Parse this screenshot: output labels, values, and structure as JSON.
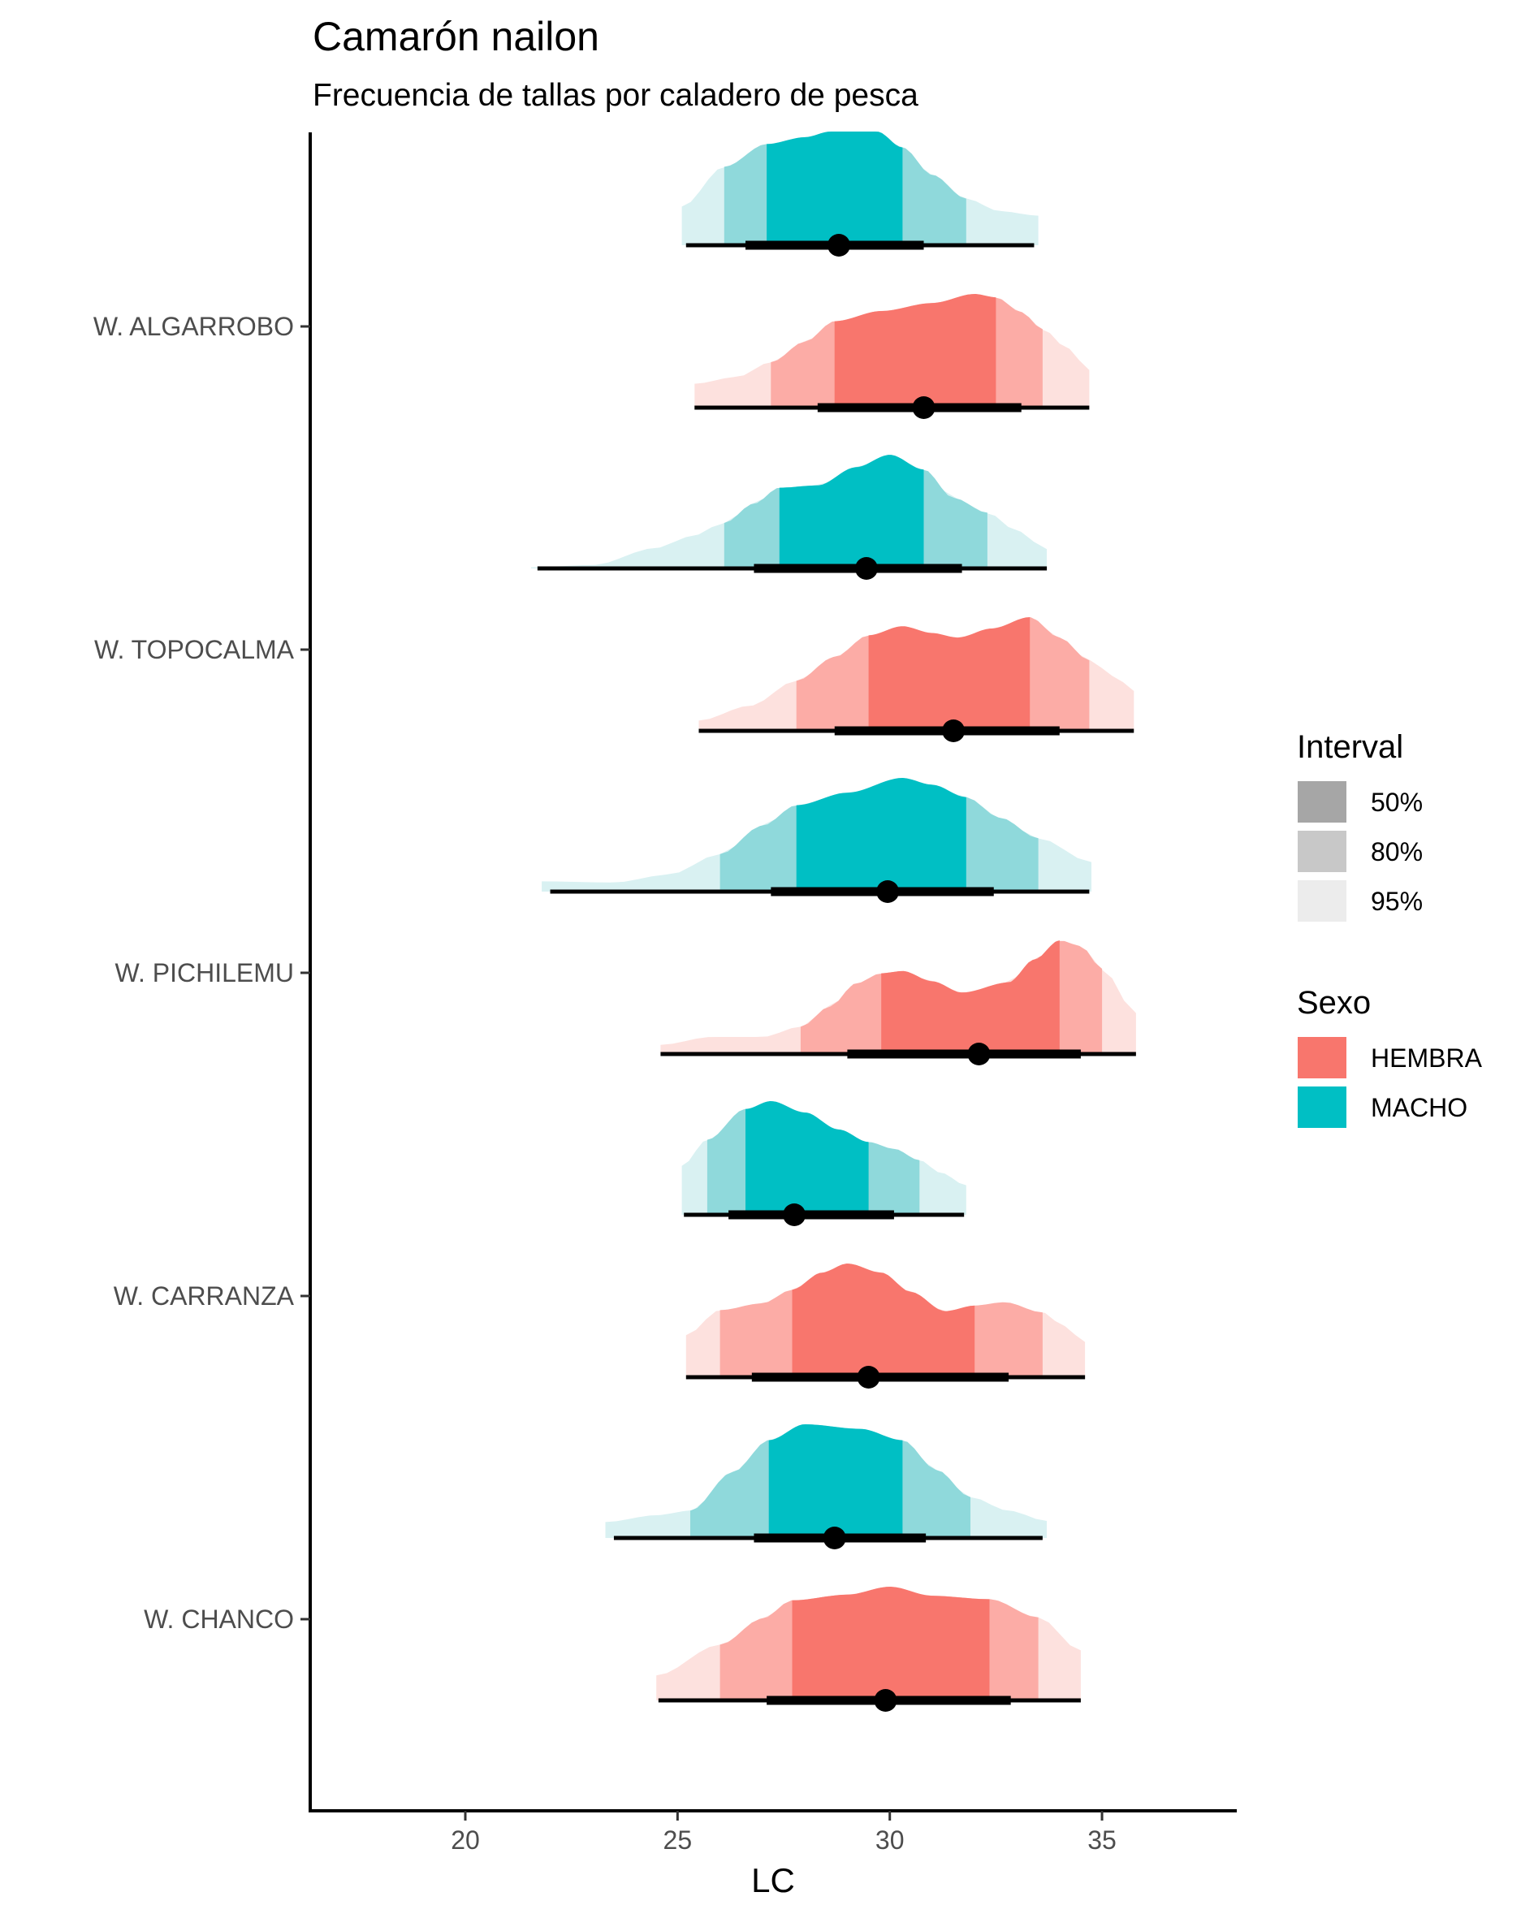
{
  "chart_data": {
    "type": "area",
    "subtype": "halfeye-density-with-intervals",
    "title": "Camarón nailon",
    "subtitle": "Frecuencia de tallas por caladero de pesca",
    "xlabel": "LC",
    "ylabel": "",
    "xlim": [
      16.35,
      38.2
    ],
    "x_ticks": [
      20,
      25,
      30,
      35
    ],
    "categories": [
      "W. ALGARROBO",
      "W. TOPOCALMA",
      "W. PICHILEMU",
      "W. CARRANZA",
      "W. CHANCO"
    ],
    "grid": false,
    "legend": {
      "placement": "right",
      "interval": {
        "title": "Interval",
        "items": [
          {
            "label": "50%",
            "color": "#a6a6a6"
          },
          {
            "label": "80%",
            "color": "#c8c8c8"
          },
          {
            "label": "95%",
            "color": "#ececec"
          }
        ]
      },
      "sexo": {
        "title": "Sexo",
        "items": [
          {
            "label": "HEMBRA",
            "color": "#f8766d"
          },
          {
            "label": "MACHO",
            "color": "#00bfc4"
          }
        ]
      }
    },
    "colors": {
      "HEMBRA": {
        "i50": "#f8766d",
        "i80": "#fcaca6",
        "i95": "#fde1de"
      },
      "MACHO": {
        "i50": "#00bfc4",
        "i80": "#8fd9db",
        "i95": "#d9f1f2"
      }
    },
    "series": [
      {
        "category": "W. ALGARROBO",
        "sexo": "MACHO",
        "median": 28.8,
        "range": [
          25.1,
          33.5
        ],
        "i95": [
          25.2,
          33.4
        ],
        "i80": [
          26.1,
          31.8
        ],
        "i50": [
          27.1,
          30.3
        ],
        "thick": [
          26.6,
          30.8
        ],
        "density": [
          [
            25.1,
            0.34
          ],
          [
            26.1,
            0.69
          ],
          [
            27.1,
            0.89
          ],
          [
            28.0,
            0.95
          ],
          [
            28.6,
            1.0
          ],
          [
            29.7,
            1.0
          ],
          [
            30.3,
            0.86
          ],
          [
            31.0,
            0.62
          ],
          [
            31.8,
            0.41
          ],
          [
            32.6,
            0.3
          ],
          [
            33.5,
            0.26
          ]
        ]
      },
      {
        "category": "W. ALGARROBO",
        "sexo": "HEMBRA",
        "median": 30.8,
        "range": [
          25.4,
          34.7
        ],
        "i95": [
          25.4,
          34.7
        ],
        "i80": [
          27.2,
          33.6
        ],
        "i50": [
          28.7,
          32.5
        ],
        "thick": [
          28.3,
          33.1
        ],
        "density": [
          [
            25.4,
            0.21
          ],
          [
            26.4,
            0.27
          ],
          [
            27.2,
            0.4
          ],
          [
            28.0,
            0.58
          ],
          [
            28.7,
            0.76
          ],
          [
            29.8,
            0.85
          ],
          [
            31.0,
            0.92
          ],
          [
            32.0,
            1.0
          ],
          [
            32.5,
            0.97
          ],
          [
            33.1,
            0.84
          ],
          [
            33.6,
            0.69
          ],
          [
            34.2,
            0.52
          ],
          [
            34.7,
            0.33
          ]
        ]
      },
      {
        "category": "W. TOPOCALMA",
        "sexo": "MACHO",
        "median": 29.45,
        "range": [
          21.55,
          33.7
        ],
        "i95": [
          21.7,
          33.7
        ],
        "i80": [
          26.1,
          32.3
        ],
        "i50": [
          27.4,
          30.8
        ],
        "thick": [
          26.8,
          31.7
        ],
        "density": [
          [
            21.55,
            0.01
          ],
          [
            23.0,
            0.03
          ],
          [
            24.5,
            0.18
          ],
          [
            25.3,
            0.28
          ],
          [
            26.1,
            0.4
          ],
          [
            26.8,
            0.57
          ],
          [
            27.4,
            0.71
          ],
          [
            28.3,
            0.73
          ],
          [
            29.2,
            0.89
          ],
          [
            30.0,
            1.0
          ],
          [
            30.8,
            0.87
          ],
          [
            31.5,
            0.62
          ],
          [
            32.3,
            0.49
          ],
          [
            33.0,
            0.33
          ],
          [
            33.7,
            0.17
          ]
        ]
      },
      {
        "category": "W. TOPOCALMA",
        "sexo": "HEMBRA",
        "median": 31.5,
        "range": [
          25.5,
          35.75
        ],
        "i95": [
          25.5,
          35.75
        ],
        "i80": [
          27.8,
          34.7
        ],
        "i50": [
          29.5,
          33.3
        ],
        "thick": [
          28.7,
          34.0
        ],
        "density": [
          [
            25.5,
            0.09
          ],
          [
            26.7,
            0.22
          ],
          [
            27.8,
            0.44
          ],
          [
            28.7,
            0.65
          ],
          [
            29.5,
            0.84
          ],
          [
            30.3,
            0.92
          ],
          [
            31.0,
            0.86
          ],
          [
            31.6,
            0.82
          ],
          [
            32.4,
            0.9
          ],
          [
            33.3,
            1.0
          ],
          [
            34.0,
            0.82
          ],
          [
            34.7,
            0.62
          ],
          [
            35.3,
            0.48
          ],
          [
            35.75,
            0.35
          ]
        ]
      },
      {
        "category": "W. PICHILEMU",
        "sexo": "MACHO",
        "median": 29.95,
        "range": [
          21.8,
          34.75
        ],
        "i95": [
          22.0,
          34.7
        ],
        "i80": [
          26.0,
          33.5
        ],
        "i50": [
          27.8,
          31.8
        ],
        "thick": [
          27.2,
          32.45
        ],
        "density": [
          [
            21.8,
            0.09
          ],
          [
            23.5,
            0.08
          ],
          [
            24.8,
            0.15
          ],
          [
            26.0,
            0.33
          ],
          [
            27.0,
            0.58
          ],
          [
            27.8,
            0.76
          ],
          [
            29.0,
            0.87
          ],
          [
            30.3,
            1.0
          ],
          [
            31.0,
            0.94
          ],
          [
            31.8,
            0.83
          ],
          [
            32.6,
            0.65
          ],
          [
            33.5,
            0.47
          ],
          [
            34.75,
            0.26
          ]
        ]
      },
      {
        "category": "W. PICHILEMU",
        "sexo": "HEMBRA",
        "median": 32.1,
        "range": [
          24.6,
          35.8
        ],
        "i95": [
          24.6,
          35.8
        ],
        "i80": [
          27.9,
          35.0
        ],
        "i50": [
          29.8,
          34.0
        ],
        "thick": [
          29.0,
          34.5
        ],
        "density": [
          [
            24.6,
            0.08
          ],
          [
            25.8,
            0.15
          ],
          [
            27.0,
            0.15
          ],
          [
            27.9,
            0.24
          ],
          [
            28.6,
            0.42
          ],
          [
            29.2,
            0.62
          ],
          [
            29.8,
            0.71
          ],
          [
            30.3,
            0.73
          ],
          [
            31.0,
            0.64
          ],
          [
            31.7,
            0.54
          ],
          [
            32.8,
            0.63
          ],
          [
            33.4,
            0.83
          ],
          [
            34.0,
            1.0
          ],
          [
            34.5,
            0.95
          ],
          [
            35.0,
            0.75
          ],
          [
            35.8,
            0.36
          ]
        ]
      },
      {
        "category": "W. CARRANZA",
        "sexo": "MACHO",
        "median": 27.75,
        "range": [
          25.1,
          31.8
        ],
        "i95": [
          25.15,
          31.75
        ],
        "i80": [
          25.7,
          30.7
        ],
        "i50": [
          26.6,
          29.5
        ],
        "thick": [
          26.2,
          30.1
        ],
        "density": [
          [
            25.1,
            0.43
          ],
          [
            25.7,
            0.66
          ],
          [
            26.6,
            0.93
          ],
          [
            27.2,
            1.0
          ],
          [
            28.0,
            0.9
          ],
          [
            28.8,
            0.75
          ],
          [
            29.5,
            0.64
          ],
          [
            30.1,
            0.58
          ],
          [
            30.7,
            0.48
          ],
          [
            31.2,
            0.37
          ],
          [
            31.8,
            0.26
          ]
        ]
      },
      {
        "category": "W. CARRANZA",
        "sexo": "HEMBRA",
        "median": 29.5,
        "range": [
          25.2,
          34.6
        ],
        "i95": [
          25.2,
          34.6
        ],
        "i80": [
          26.0,
          33.6
        ],
        "i50": [
          27.7,
          32.0
        ],
        "thick": [
          26.75,
          32.8
        ],
        "density": [
          [
            25.2,
            0.37
          ],
          [
            26.0,
            0.59
          ],
          [
            27.0,
            0.65
          ],
          [
            27.7,
            0.77
          ],
          [
            28.4,
            0.92
          ],
          [
            29.0,
            1.0
          ],
          [
            29.8,
            0.92
          ],
          [
            30.5,
            0.75
          ],
          [
            31.3,
            0.58
          ],
          [
            32.0,
            0.63
          ],
          [
            32.7,
            0.66
          ],
          [
            33.6,
            0.57
          ],
          [
            34.1,
            0.45
          ],
          [
            34.6,
            0.31
          ]
        ]
      },
      {
        "category": "W. CHANCO",
        "sexo": "MACHO",
        "median": 28.7,
        "range": [
          23.3,
          33.7
        ],
        "i95": [
          23.5,
          33.6
        ],
        "i80": [
          25.3,
          31.9
        ],
        "i50": [
          27.15,
          30.3
        ],
        "thick": [
          26.8,
          30.85
        ],
        "density": [
          [
            23.3,
            0.14
          ],
          [
            24.5,
            0.2
          ],
          [
            25.3,
            0.24
          ],
          [
            26.3,
            0.58
          ],
          [
            27.15,
            0.86
          ],
          [
            28.0,
            1.0
          ],
          [
            29.3,
            0.96
          ],
          [
            30.3,
            0.86
          ],
          [
            31.1,
            0.6
          ],
          [
            31.9,
            0.36
          ],
          [
            32.8,
            0.24
          ],
          [
            33.7,
            0.15
          ]
        ]
      },
      {
        "category": "W. CHANCO",
        "sexo": "HEMBRA",
        "median": 29.9,
        "range": [
          24.5,
          34.5
        ],
        "i95": [
          24.55,
          34.5
        ],
        "i80": [
          26.0,
          33.5
        ],
        "i50": [
          27.7,
          32.35
        ],
        "thick": [
          27.1,
          32.85
        ],
        "density": [
          [
            24.5,
            0.22
          ],
          [
            26.0,
            0.49
          ],
          [
            27.0,
            0.72
          ],
          [
            27.7,
            0.88
          ],
          [
            29.0,
            0.93
          ],
          [
            30.0,
            1.0
          ],
          [
            31.0,
            0.92
          ],
          [
            32.35,
            0.89
          ],
          [
            33.5,
            0.73
          ],
          [
            34.5,
            0.44
          ]
        ]
      }
    ]
  }
}
